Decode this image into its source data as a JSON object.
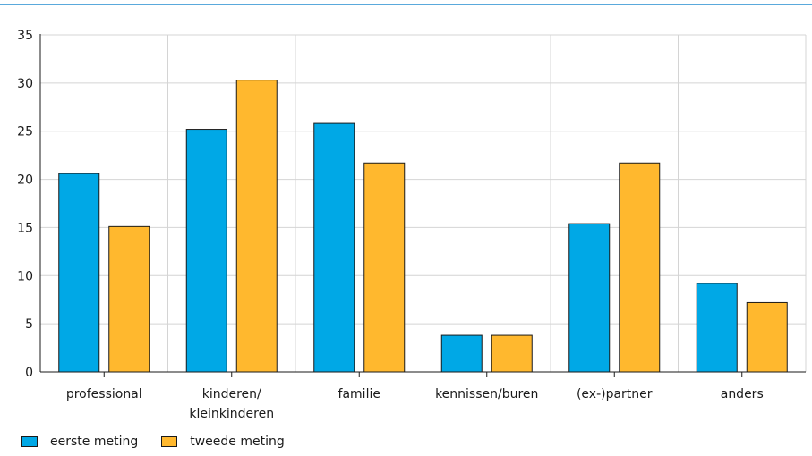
{
  "chart_data": {
    "type": "bar",
    "title": "",
    "xlabel": "",
    "ylabel": "",
    "ylim": [
      0,
      35
    ],
    "yticks": [
      0,
      5,
      10,
      15,
      20,
      25,
      30,
      35
    ],
    "grid": true,
    "legend_position": "bottom-left",
    "categories": [
      [
        "professional"
      ],
      [
        "kinderen/",
        "kleinkinderen"
      ],
      [
        "familie"
      ],
      [
        "kennissen/buren"
      ],
      [
        "(ex-)partner"
      ],
      [
        "anders"
      ]
    ],
    "series": [
      {
        "name": "eerste meting",
        "color": "#00a8e6",
        "values": [
          20.6,
          25.2,
          25.8,
          3.8,
          15.4,
          9.2
        ]
      },
      {
        "name": "tweede meting",
        "color": "#ffb82e",
        "values": [
          15.1,
          30.3,
          21.7,
          3.8,
          21.7,
          7.2
        ]
      }
    ]
  },
  "legend": {
    "items": [
      {
        "label": "eerste meting",
        "color": "#00a8e6"
      },
      {
        "label": "tweede meting",
        "color": "#ffb82e"
      }
    ]
  }
}
